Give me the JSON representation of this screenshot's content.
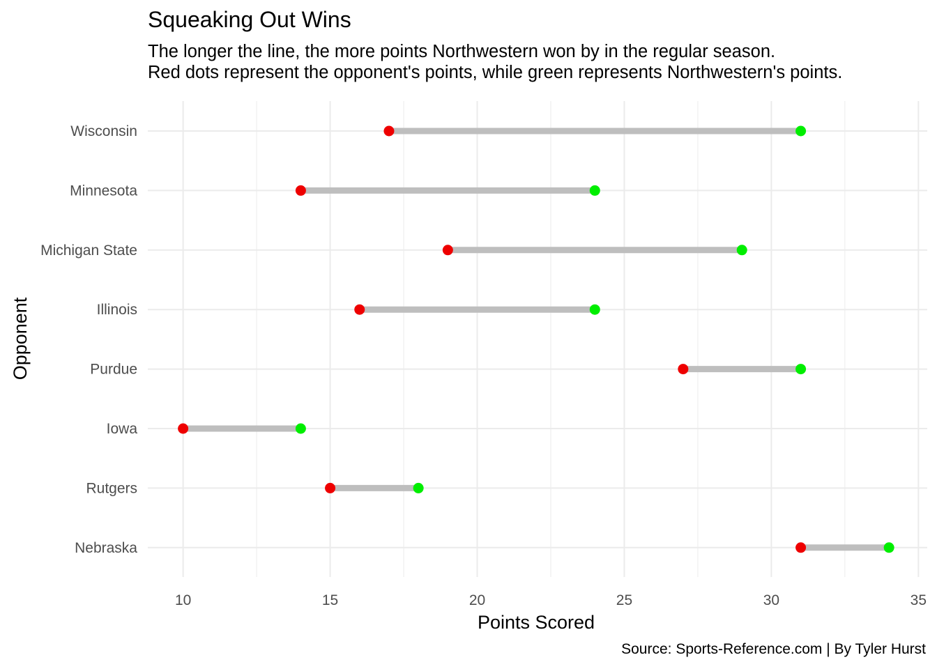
{
  "chart_data": {
    "type": "dumbbell",
    "title": "Squeaking Out Wins",
    "subtitle": [
      "The longer the line, the more points Northwestern won by in the regular season.",
      "Red dots represent the opponent's points, while green represents Northwestern's points."
    ],
    "caption": "Source: Sports-Reference.com | By Tyler Hurst",
    "xlabel": "Points Scored",
    "ylabel": "Opponent",
    "xlim": [
      8.8,
      35.3
    ],
    "x_ticks": [
      "10",
      "15",
      "20",
      "25",
      "30",
      "35"
    ],
    "categories": [
      "Wisconsin",
      "Minnesota",
      "Michigan State",
      "Illinois",
      "Purdue",
      "Iowa",
      "Rutgers",
      "Nebraska"
    ],
    "series": [
      {
        "name": "Opponent",
        "color": "#ee0000",
        "values": [
          17,
          14,
          19,
          16,
          27,
          10,
          15,
          31
        ]
      },
      {
        "name": "Northwestern",
        "color": "#00ee00",
        "values": [
          31,
          24,
          29,
          24,
          31,
          14,
          18,
          34
        ]
      }
    ],
    "segment_color": "#bebebe",
    "grid": true,
    "legend": "none"
  }
}
